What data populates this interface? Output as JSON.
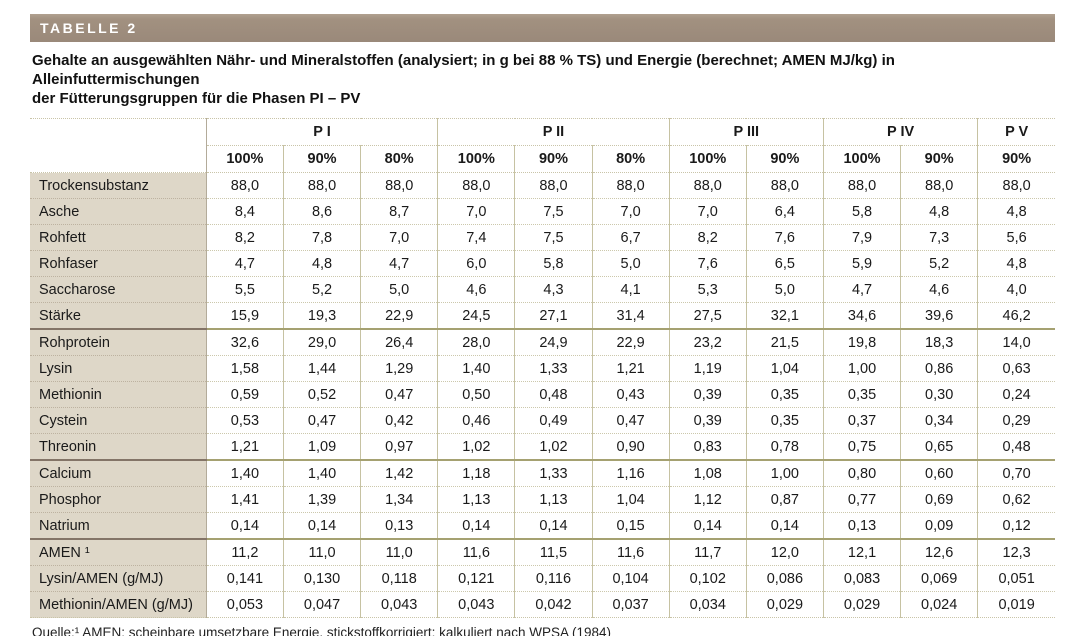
{
  "tag": "TABELLE 2",
  "title": {
    "line1": "Gehalte an ausgewählten Nähr- und Mineralstoffen (analysiert; in g bei 88 % TS) und Energie (berechnet; AMEN MJ/kg) in Alleinfuttermischungen",
    "line2": "der Fütterungsgruppen für die Phasen PI – PV"
  },
  "footer": "Quelle:¹ AMEN: scheinbare umsetzbare Energie, stickstoffkorrigiert; kalkuliert nach WPSA (1984)",
  "chart_data": {
    "type": "table",
    "groups": [
      {
        "label": "P I",
        "columns": [
          "100%",
          "90%",
          "80%"
        ]
      },
      {
        "label": "P II",
        "columns": [
          "100%",
          "90%",
          "80%"
        ]
      },
      {
        "label": "P III",
        "columns": [
          "100%",
          "90%"
        ]
      },
      {
        "label": "P IV",
        "columns": [
          "100%",
          "90%"
        ]
      },
      {
        "label": "P V",
        "columns": [
          "90%"
        ]
      }
    ],
    "rows": [
      {
        "label": "Trockensubstanz",
        "sep_after": false,
        "values": [
          "88,0",
          "88,0",
          "88,0",
          "88,0",
          "88,0",
          "88,0",
          "88,0",
          "88,0",
          "88,0",
          "88,0",
          "88,0"
        ]
      },
      {
        "label": "Asche",
        "sep_after": false,
        "values": [
          "8,4",
          "8,6",
          "8,7",
          "7,0",
          "7,5",
          "7,0",
          "7,0",
          "6,4",
          "5,8",
          "4,8",
          "4,8"
        ]
      },
      {
        "label": "Rohfett",
        "sep_after": false,
        "values": [
          "8,2",
          "7,8",
          "7,0",
          "7,4",
          "7,5",
          "6,7",
          "8,2",
          "7,6",
          "7,9",
          "7,3",
          "5,6"
        ]
      },
      {
        "label": "Rohfaser",
        "sep_after": false,
        "values": [
          "4,7",
          "4,8",
          "4,7",
          "6,0",
          "5,8",
          "5,0",
          "7,6",
          "6,5",
          "5,9",
          "5,2",
          "4,8"
        ]
      },
      {
        "label": "Saccharose",
        "sep_after": false,
        "values": [
          "5,5",
          "5,2",
          "5,0",
          "4,6",
          "4,3",
          "4,1",
          "5,3",
          "5,0",
          "4,7",
          "4,6",
          "4,0"
        ]
      },
      {
        "label": "Stärke",
        "sep_after": true,
        "values": [
          "15,9",
          "19,3",
          "22,9",
          "24,5",
          "27,1",
          "31,4",
          "27,5",
          "32,1",
          "34,6",
          "39,6",
          "46,2"
        ]
      },
      {
        "label": "Rohprotein",
        "sep_after": false,
        "values": [
          "32,6",
          "29,0",
          "26,4",
          "28,0",
          "24,9",
          "22,9",
          "23,2",
          "21,5",
          "19,8",
          "18,3",
          "14,0"
        ]
      },
      {
        "label": "Lysin",
        "sep_after": false,
        "values": [
          "1,58",
          "1,44",
          "1,29",
          "1,40",
          "1,33",
          "1,21",
          "1,19",
          "1,04",
          "1,00",
          "0,86",
          "0,63"
        ]
      },
      {
        "label": "Methionin",
        "sep_after": false,
        "values": [
          "0,59",
          "0,52",
          "0,47",
          "0,50",
          "0,48",
          "0,43",
          "0,39",
          "0,35",
          "0,35",
          "0,30",
          "0,24"
        ]
      },
      {
        "label": "Cystein",
        "sep_after": false,
        "values": [
          "0,53",
          "0,47",
          "0,42",
          "0,46",
          "0,49",
          "0,47",
          "0,39",
          "0,35",
          "0,37",
          "0,34",
          "0,29"
        ]
      },
      {
        "label": "Threonin",
        "sep_after": true,
        "values": [
          "1,21",
          "1,09",
          "0,97",
          "1,02",
          "1,02",
          "0,90",
          "0,83",
          "0,78",
          "0,75",
          "0,65",
          "0,48"
        ]
      },
      {
        "label": "Calcium",
        "sep_after": false,
        "values": [
          "1,40",
          "1,40",
          "1,42",
          "1,18",
          "1,33",
          "1,16",
          "1,08",
          "1,00",
          "0,80",
          "0,60",
          "0,70"
        ]
      },
      {
        "label": "Phosphor",
        "sep_after": false,
        "values": [
          "1,41",
          "1,39",
          "1,34",
          "1,13",
          "1,13",
          "1,04",
          "1,12",
          "0,87",
          "0,77",
          "0,69",
          "0,62"
        ]
      },
      {
        "label": "Natrium",
        "sep_after": true,
        "values": [
          "0,14",
          "0,14",
          "0,13",
          "0,14",
          "0,14",
          "0,15",
          "0,14",
          "0,14",
          "0,13",
          "0,09",
          "0,12"
        ]
      },
      {
        "label": "AMEN ¹",
        "sep_after": false,
        "values": [
          "11,2",
          "11,0",
          "11,0",
          "11,6",
          "11,5",
          "11,6",
          "11,7",
          "12,0",
          "12,1",
          "12,6",
          "12,3"
        ]
      },
      {
        "label": "Lysin/AMEN (g/MJ)",
        "sep_after": false,
        "values": [
          "0,141",
          "0,130",
          "0,118",
          "0,121",
          "0,116",
          "0,104",
          "0,102",
          "0,086",
          "0,083",
          "0,069",
          "0,051"
        ]
      },
      {
        "label": "Methionin/AMEN (g/MJ)",
        "sep_after": false,
        "values": [
          "0,053",
          "0,047",
          "0,043",
          "0,043",
          "0,042",
          "0,037",
          "0,034",
          "0,029",
          "0,029",
          "0,024",
          "0,019"
        ]
      }
    ]
  },
  "colors": {
    "tag_bar_bg": "#9a897a",
    "label_column_bg": "#ded7c8",
    "grid_vertical": "#c6c2a2",
    "grid_dotted": "#ccc8ac",
    "separator_thick_data": "#a5a171",
    "separator_thick_label": "#837467"
  }
}
